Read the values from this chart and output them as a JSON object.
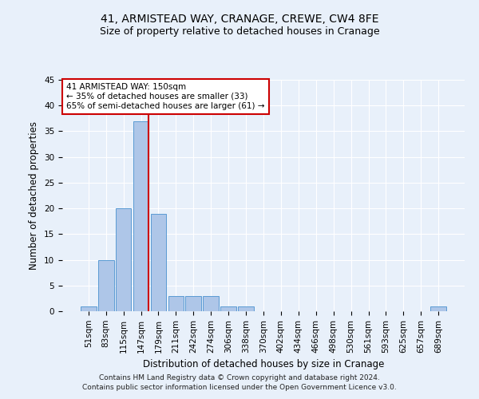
{
  "title1": "41, ARMISTEAD WAY, CRANAGE, CREWE, CW4 8FE",
  "title2": "Size of property relative to detached houses in Cranage",
  "xlabel": "Distribution of detached houses by size in Cranage",
  "ylabel": "Number of detached properties",
  "footer": "Contains HM Land Registry data © Crown copyright and database right 2024.\nContains public sector information licensed under the Open Government Licence v3.0.",
  "categories": [
    "51sqm",
    "83sqm",
    "115sqm",
    "147sqm",
    "179sqm",
    "211sqm",
    "242sqm",
    "274sqm",
    "306sqm",
    "338sqm",
    "370sqm",
    "402sqm",
    "434sqm",
    "466sqm",
    "498sqm",
    "530sqm",
    "561sqm",
    "593sqm",
    "625sqm",
    "657sqm",
    "689sqm"
  ],
  "values": [
    1,
    10,
    20,
    37,
    19,
    3,
    3,
    3,
    1,
    1,
    0,
    0,
    0,
    0,
    0,
    0,
    0,
    0,
    0,
    0,
    1
  ],
  "bar_color": "#aec6e8",
  "bar_edge_color": "#5a9bd4",
  "vline_x_index": 3,
  "vline_color": "#cc0000",
  "ylim": [
    0,
    45
  ],
  "annotation_text": "41 ARMISTEAD WAY: 150sqm\n← 35% of detached houses are smaller (33)\n65% of semi-detached houses are larger (61) →",
  "annotation_box_color": "#ffffff",
  "annotation_box_edge": "#cc0000",
  "bg_color": "#e8f0fa",
  "plot_bg_color": "#e8f0fa",
  "grid_color": "#ffffff",
  "title1_fontsize": 10,
  "title2_fontsize": 9,
  "xlabel_fontsize": 8.5,
  "ylabel_fontsize": 8.5,
  "tick_fontsize": 7.5
}
